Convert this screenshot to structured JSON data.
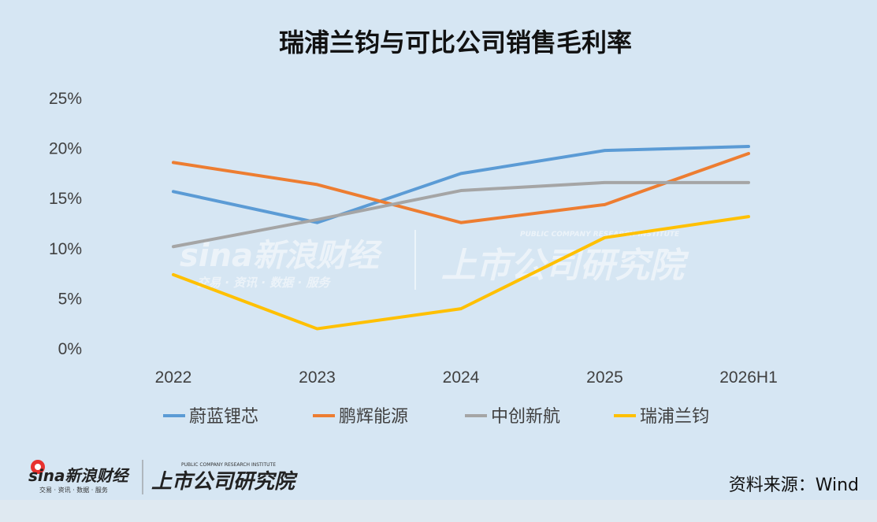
{
  "chart_data": {
    "type": "line",
    "title": "瑞浦兰钧与可比公司销售毛利率",
    "categories": [
      "2022",
      "2023",
      "2024",
      "2025",
      "2026H1"
    ],
    "ylim": [
      0,
      25
    ],
    "yticks": [
      "0%",
      "5%",
      "10%",
      "15%",
      "20%",
      "25%"
    ],
    "ytick_values": [
      0,
      5,
      10,
      15,
      20,
      25
    ],
    "grid": false,
    "legend_position": "bottom",
    "series": [
      {
        "name": "蔚蓝锂芯",
        "color": "#5b9bd5",
        "values": [
          15.7,
          12.6,
          17.5,
          19.8,
          20.2
        ]
      },
      {
        "name": "鹏辉能源",
        "color": "#ed7d31",
        "values": [
          18.6,
          16.4,
          12.6,
          14.4,
          19.5
        ]
      },
      {
        "name": "中创新航",
        "color": "#a5a5a5",
        "values": [
          10.2,
          12.9,
          15.8,
          16.6,
          16.6
        ]
      },
      {
        "name": "瑞浦兰钧",
        "color": "#ffc000",
        "values": [
          7.4,
          2.0,
          4.0,
          11.1,
          13.2
        ]
      }
    ]
  },
  "watermark": {
    "brand": "sina新浪财经",
    "brand_sub": "交易 · 资讯 · 数据 · 服务",
    "institute": "上市公司研究院",
    "institute_en": "PUBLIC COMPANY RESEARCH INSTITUTE"
  },
  "source": "资料来源：Wind"
}
